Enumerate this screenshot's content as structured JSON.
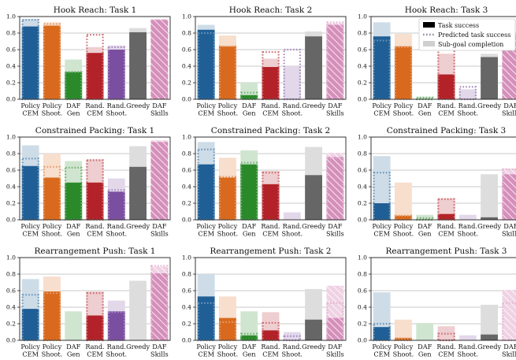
{
  "colors": {
    "policy_cem": "#1f5f96",
    "policy_shoot": "#d9691c",
    "daf_gen": "#2a8a2a",
    "rand_cem": "#b22228",
    "rand_shoot": "#7a4ea0",
    "greedy": "#666666",
    "daf_skills": "#d58fba"
  },
  "legend": {
    "position": "top-right",
    "entries": [
      {
        "label": "Task success",
        "style": "solid"
      },
      {
        "label": "Predicted task success",
        "style": "dotted"
      },
      {
        "label": "Sub-goal completion",
        "style": "light"
      }
    ]
  },
  "chart_data": [
    {
      "type": "bar",
      "title": "Hook Reach: Task 1",
      "ylim": [
        0,
        1.0
      ],
      "yticks": [
        "0.0",
        "0.2",
        "0.4",
        "0.6",
        "0.8",
        "1.0"
      ],
      "grid": true,
      "categories": [
        [
          "Policy",
          "CEM"
        ],
        [
          "Policy",
          "Shoot."
        ],
        [
          "DAF",
          "Gen"
        ],
        [
          "Rand.",
          "CEM"
        ],
        [
          "Rand.",
          "Shoot."
        ],
        [
          "Greedy"
        ],
        [
          "DAF",
          "Skills"
        ]
      ],
      "series": [
        {
          "name": "Task success",
          "values": [
            0.88,
            0.89,
            0.33,
            0.56,
            0.6,
            0.81,
            0.96
          ]
        },
        {
          "name": "Predicted task success",
          "values": [
            0.96,
            0.91,
            0.33,
            0.78,
            0.63,
            null,
            null
          ]
        },
        {
          "name": "Sub-goal completion",
          "values": [
            0.97,
            0.93,
            0.48,
            0.63,
            0.65,
            0.86,
            0.97
          ]
        }
      ]
    },
    {
      "type": "bar",
      "title": "Hook Reach: Task 2",
      "ylim": [
        0,
        1.0
      ],
      "yticks": [
        "0.0",
        "0.2",
        "0.4",
        "0.6",
        "0.8",
        "1.0"
      ],
      "grid": true,
      "categories": [
        [
          "Policy",
          "CEM"
        ],
        [
          "Policy",
          "Shoot."
        ],
        [
          "DAF",
          "Gen"
        ],
        [
          "Rand.",
          "CEM"
        ],
        [
          "Rand.",
          "Shoot."
        ],
        [
          "Greedy"
        ],
        [
          "DAF",
          "Skills"
        ]
      ],
      "series": [
        {
          "name": "Task success",
          "values": [
            0.84,
            0.64,
            0.05,
            0.39,
            0.0,
            0.76,
            0.9
          ]
        },
        {
          "name": "Predicted task success",
          "values": [
            0.8,
            0.64,
            0.08,
            0.57,
            0.6,
            null,
            0.93
          ]
        },
        {
          "name": "Sub-goal completion",
          "values": [
            0.9,
            0.77,
            0.2,
            0.49,
            0.4,
            0.82,
            0.92
          ]
        }
      ]
    },
    {
      "type": "bar",
      "title": "Hook Reach: Task 3",
      "ylim": [
        0,
        1.0
      ],
      "yticks": [
        "0.0",
        "0.2",
        "0.4",
        "0.6",
        "0.8",
        "1.0"
      ],
      "grid": true,
      "categories": [
        [
          "Policy",
          "CEM"
        ],
        [
          "Policy",
          "Shoot."
        ],
        [
          "DAF",
          "Gen"
        ],
        [
          "Rand.",
          "CEM"
        ],
        [
          "Rand.",
          "Shoot."
        ],
        [
          "Greedy"
        ],
        [
          "DAF",
          "Skills"
        ]
      ],
      "series": [
        {
          "name": "Task success",
          "values": [
            0.76,
            0.64,
            0.0,
            0.3,
            0.0,
            0.51,
            0.8
          ]
        },
        {
          "name": "Predicted task success",
          "values": [
            0.71,
            0.63,
            0.02,
            0.61,
            0.15,
            null,
            null
          ]
        },
        {
          "name": "Sub-goal completion",
          "values": [
            0.93,
            0.79,
            0.03,
            0.55,
            0.12,
            0.55,
            0.82
          ]
        }
      ]
    },
    {
      "type": "bar",
      "title": "Constrained Packing: Task 1",
      "ylim": [
        0,
        1.0
      ],
      "yticks": [
        "0.0",
        "0.2",
        "0.4",
        "0.6",
        "0.8",
        "1.0"
      ],
      "grid": true,
      "categories": [
        [
          "Policy",
          "CEM"
        ],
        [
          "Policy",
          "Shoot."
        ],
        [
          "DAF",
          "Gen"
        ],
        [
          "Rand.",
          "CEM"
        ],
        [
          "Rand.",
          "Shoot."
        ],
        [
          "Greedy"
        ],
        [
          "DAF",
          "Skills"
        ]
      ],
      "series": [
        {
          "name": "Task success",
          "values": [
            0.65,
            0.51,
            0.45,
            0.45,
            0.34,
            0.64,
            0.94
          ]
        },
        {
          "name": "Predicted task success",
          "values": [
            0.74,
            0.64,
            0.63,
            0.72,
            0.36,
            null,
            null
          ]
        },
        {
          "name": "Sub-goal completion",
          "values": [
            0.9,
            0.8,
            0.71,
            0.73,
            0.5,
            0.89,
            0.96
          ]
        }
      ]
    },
    {
      "type": "bar",
      "title": "Constrained Packing: Task 2",
      "ylim": [
        0,
        1.0
      ],
      "yticks": [
        "0.0",
        "0.2",
        "0.4",
        "0.6",
        "0.8",
        "1.0"
      ],
      "grid": true,
      "categories": [
        [
          "Policy",
          "CEM"
        ],
        [
          "Policy",
          "Shoot."
        ],
        [
          "DAF",
          "Gen"
        ],
        [
          "Rand.",
          "CEM"
        ],
        [
          "Rand.",
          "Shoot."
        ],
        [
          "Greedy"
        ],
        [
          "DAF",
          "Skills"
        ]
      ],
      "series": [
        {
          "name": "Task success",
          "values": [
            0.67,
            0.51,
            0.67,
            0.43,
            0.0,
            0.54,
            0.76
          ]
        },
        {
          "name": "Predicted task success",
          "values": [
            0.85,
            0.52,
            0.69,
            0.57,
            0.0,
            null,
            0.75
          ]
        },
        {
          "name": "Sub-goal completion",
          "values": [
            0.94,
            0.75,
            0.84,
            0.59,
            0.09,
            0.88,
            0.81
          ]
        }
      ]
    },
    {
      "type": "bar",
      "title": "Constrained Packing: Task 3",
      "ylim": [
        0,
        1.0
      ],
      "yticks": [
        "0.0",
        "0.2",
        "0.4",
        "0.6",
        "0.8",
        "1.0"
      ],
      "grid": true,
      "categories": [
        [
          "Policy",
          "CEM"
        ],
        [
          "Policy",
          "Shoot."
        ],
        [
          "DAF",
          "Gen"
        ],
        [
          "Rand.",
          "CEM"
        ],
        [
          "Rand.",
          "Shoot."
        ],
        [
          "Greedy"
        ],
        [
          "DAF",
          "Skills"
        ]
      ],
      "series": [
        {
          "name": "Task success",
          "values": [
            0.2,
            0.05,
            0.0,
            0.07,
            0.0,
            0.03,
            0.55
          ]
        },
        {
          "name": "Predicted task success",
          "values": [
            0.57,
            0.05,
            0.02,
            0.25,
            0.0,
            null,
            0.61
          ]
        },
        {
          "name": "Sub-goal completion",
          "values": [
            0.77,
            0.45,
            0.06,
            0.26,
            0.06,
            0.55,
            0.62
          ]
        }
      ]
    },
    {
      "type": "bar",
      "title": "Rearrangement Push: Task 1",
      "ylim": [
        0,
        1.0
      ],
      "yticks": [
        "0.0",
        "0.2",
        "0.4",
        "0.6",
        "0.8",
        "1.0"
      ],
      "grid": true,
      "categories": [
        [
          "Policy",
          "CEM"
        ],
        [
          "Policy",
          "Shoot."
        ],
        [
          "DAF",
          "Gen"
        ],
        [
          "Rand.",
          "CEM"
        ],
        [
          "Rand.",
          "Shoot."
        ],
        [
          "Greedy"
        ],
        [
          "DAF",
          "Skills"
        ]
      ],
      "series": [
        {
          "name": "Task success",
          "values": [
            0.38,
            0.59,
            0.0,
            0.3,
            0.35,
            0.0,
            0.81
          ]
        },
        {
          "name": "Predicted task success",
          "values": [
            0.55,
            0.57,
            0.0,
            0.57,
            0.34,
            null,
            0.9
          ]
        },
        {
          "name": "Sub-goal completion",
          "values": [
            0.74,
            0.77,
            0.35,
            0.59,
            0.48,
            0.72,
            0.89
          ]
        }
      ]
    },
    {
      "type": "bar",
      "title": "Rearrangement Push: Task 2",
      "ylim": [
        0,
        1.0
      ],
      "yticks": [
        "0.0",
        "0.2",
        "0.4",
        "0.6",
        "0.8",
        "1.0"
      ],
      "grid": true,
      "categories": [
        [
          "Policy",
          "CEM"
        ],
        [
          "Policy",
          "Shoot."
        ],
        [
          "DAF",
          "Gen"
        ],
        [
          "Rand.",
          "CEM"
        ],
        [
          "Rand.",
          "Shoot."
        ],
        [
          "Greedy"
        ],
        [
          "DAF",
          "Skills"
        ]
      ],
      "series": [
        {
          "name": "Task success",
          "values": [
            0.53,
            0.27,
            0.06,
            0.12,
            0.0,
            0.25,
            0.27
          ]
        },
        {
          "name": "Predicted task success",
          "values": [
            0.45,
            0.22,
            0.08,
            0.21,
            0.05,
            null,
            0.45
          ]
        },
        {
          "name": "Sub-goal completion",
          "values": [
            0.8,
            0.53,
            0.35,
            0.34,
            0.1,
            0.62,
            0.66
          ]
        }
      ]
    },
    {
      "type": "bar",
      "title": "Rearrangement Push: Task 3",
      "ylim": [
        0,
        1.0
      ],
      "yticks": [
        "0.0",
        "0.2",
        "0.4",
        "0.6",
        "0.8",
        "1.0"
      ],
      "grid": true,
      "categories": [
        [
          "Policy",
          "CEM"
        ],
        [
          "Policy",
          "Shoot."
        ],
        [
          "DAF",
          "Gen"
        ],
        [
          "Rand.",
          "CEM"
        ],
        [
          "Rand.",
          "Shoot."
        ],
        [
          "Greedy"
        ],
        [
          "DAF",
          "Skills"
        ]
      ],
      "series": [
        {
          "name": "Task success",
          "values": [
            0.16,
            0.03,
            0.0,
            0.0,
            0.0,
            0.07,
            0.0
          ]
        },
        {
          "name": "Predicted task success",
          "values": [
            0.2,
            0.02,
            0.0,
            0.08,
            0.0,
            null,
            0.45
          ]
        },
        {
          "name": "Sub-goal completion",
          "values": [
            0.58,
            0.25,
            0.21,
            0.17,
            0.06,
            0.43,
            0.61
          ]
        }
      ]
    }
  ]
}
